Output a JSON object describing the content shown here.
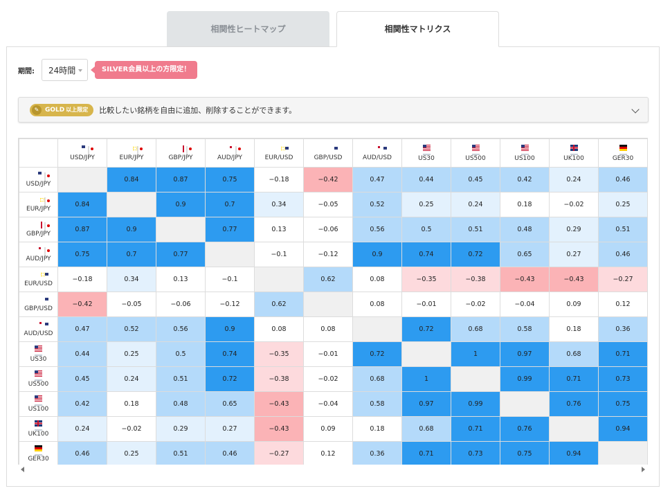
{
  "tabs": [
    {
      "label": "相関性ヒートマップ",
      "active": false
    },
    {
      "label": "相関性マトリクス",
      "active": true
    }
  ],
  "period": {
    "label": "期間:",
    "value": "24時間"
  },
  "silver_notice": "SILVER会員以上の方限定！",
  "gold": {
    "badge": "GOLD",
    "badge_sub": "以上限定",
    "text": "比較したい銘柄を自由に追加、削除することができます。"
  },
  "colors": {
    "strong_positive": "#2d9bf0",
    "mid_positive": "#b4dafa",
    "weak_positive": "#e3f1fd",
    "neutral": "#ffffff",
    "weak_negative": "#fddadd",
    "strong_negative": "#fbb3b6",
    "diagonal": "#f0f0f0"
  },
  "symbols": [
    {
      "name": "USD/JPY",
      "flags": [
        "us",
        "jp"
      ]
    },
    {
      "name": "EUR/JPY",
      "flags": [
        "eu",
        "jp"
      ]
    },
    {
      "name": "GBP/JPY",
      "flags": [
        "gb",
        "jp"
      ]
    },
    {
      "name": "AUD/JPY",
      "flags": [
        "au",
        "jp"
      ]
    },
    {
      "name": "EUR/USD",
      "flags": [
        "eu",
        "us"
      ]
    },
    {
      "name": "GBP/USD",
      "flags": [
        "gb",
        "us"
      ]
    },
    {
      "name": "AUD/USD",
      "flags": [
        "au",
        "us"
      ]
    },
    {
      "name": "US30",
      "flags": [
        "us"
      ]
    },
    {
      "name": "US500",
      "flags": [
        "us"
      ]
    },
    {
      "name": "US100",
      "flags": [
        "us"
      ]
    },
    {
      "name": "UK100",
      "flags": [
        "gb"
      ]
    },
    {
      "name": "GER30",
      "flags": [
        "de"
      ]
    }
  ],
  "matrix": [
    [
      null,
      "0.84",
      "0.87",
      "0.75",
      "−0.18",
      "−0.42",
      "0.47",
      "0.44",
      "0.45",
      "0.42",
      "0.24",
      "0.46"
    ],
    [
      "0.84",
      null,
      "0.9",
      "0.7",
      "0.34",
      "−0.05",
      "0.52",
      "0.25",
      "0.24",
      "0.18",
      "−0.02",
      "0.25"
    ],
    [
      "0.87",
      "0.9",
      null,
      "0.77",
      "0.13",
      "−0.06",
      "0.56",
      "0.5",
      "0.51",
      "0.48",
      "0.29",
      "0.51"
    ],
    [
      "0.75",
      "0.7",
      "0.77",
      null,
      "−0.1",
      "−0.12",
      "0.9",
      "0.74",
      "0.72",
      "0.65",
      "0.27",
      "0.46"
    ],
    [
      "−0.18",
      "0.34",
      "0.13",
      "−0.1",
      null,
      "0.62",
      "0.08",
      "−0.35",
      "−0.38",
      "−0.43",
      "−0.43",
      "−0.27"
    ],
    [
      "−0.42",
      "−0.05",
      "−0.06",
      "−0.12",
      "0.62",
      null,
      "0.08",
      "−0.01",
      "−0.02",
      "−0.04",
      "0.09",
      "0.12"
    ],
    [
      "0.47",
      "0.52",
      "0.56",
      "0.9",
      "0.08",
      "0.08",
      null,
      "0.72",
      "0.68",
      "0.58",
      "0.18",
      "0.36"
    ],
    [
      "0.44",
      "0.25",
      "0.5",
      "0.74",
      "−0.35",
      "−0.01",
      "0.72",
      null,
      "1",
      "0.97",
      "0.68",
      "0.71"
    ],
    [
      "0.45",
      "0.24",
      "0.51",
      "0.72",
      "−0.38",
      "−0.02",
      "0.68",
      "1",
      null,
      "0.99",
      "0.71",
      "0.73"
    ],
    [
      "0.42",
      "0.18",
      "0.48",
      "0.65",
      "−0.43",
      "−0.04",
      "0.58",
      "0.97",
      "0.99",
      null,
      "0.76",
      "0.75"
    ],
    [
      "0.24",
      "−0.02",
      "0.29",
      "0.27",
      "−0.43",
      "0.09",
      "0.18",
      "0.68",
      "0.71",
      "0.76",
      null,
      "0.94"
    ],
    [
      "0.46",
      "0.25",
      "0.51",
      "0.46",
      "−0.27",
      "0.12",
      "0.36",
      "0.71",
      "0.73",
      "0.75",
      "0.94",
      null
    ]
  ],
  "cell_shades": [
    [
      null,
      "s",
      "s",
      "s",
      "n",
      "sn",
      "m",
      "m",
      "m",
      "m",
      "w",
      "m"
    ],
    [
      "s",
      null,
      "s",
      "s",
      "w",
      "n",
      "m",
      "w",
      "w",
      "n",
      "n",
      "w"
    ],
    [
      "s",
      "s",
      null,
      "s",
      "n",
      "n",
      "m",
      "m",
      "m",
      "m",
      "w",
      "m"
    ],
    [
      "s",
      "s",
      "s",
      null,
      "n",
      "n",
      "s",
      "s",
      "s",
      "m",
      "w",
      "m"
    ],
    [
      "n",
      "w",
      "n",
      "n",
      null,
      "m",
      "n",
      "wn",
      "wn",
      "sn",
      "sn",
      "wn"
    ],
    [
      "sn",
      "n",
      "n",
      "n",
      "m",
      null,
      "n",
      "n",
      "n",
      "n",
      "n",
      "n"
    ],
    [
      "m",
      "m",
      "m",
      "s",
      "n",
      "n",
      null,
      "s",
      "m",
      "m",
      "n",
      "m"
    ],
    [
      "m",
      "w",
      "m",
      "s",
      "wn",
      "n",
      "s",
      null,
      "s",
      "s",
      "m",
      "s"
    ],
    [
      "m",
      "w",
      "m",
      "s",
      "wn",
      "n",
      "m",
      "s",
      null,
      "s",
      "s",
      "s"
    ],
    [
      "m",
      "n",
      "m",
      "m",
      "sn",
      "n",
      "m",
      "s",
      "s",
      null,
      "s",
      "s"
    ],
    [
      "w",
      "n",
      "w",
      "w",
      "sn",
      "n",
      "n",
      "m",
      "s",
      "s",
      null,
      "s"
    ],
    [
      "m",
      "w",
      "m",
      "m",
      "wn",
      "n",
      "m",
      "s",
      "s",
      "s",
      "s",
      null
    ]
  ]
}
